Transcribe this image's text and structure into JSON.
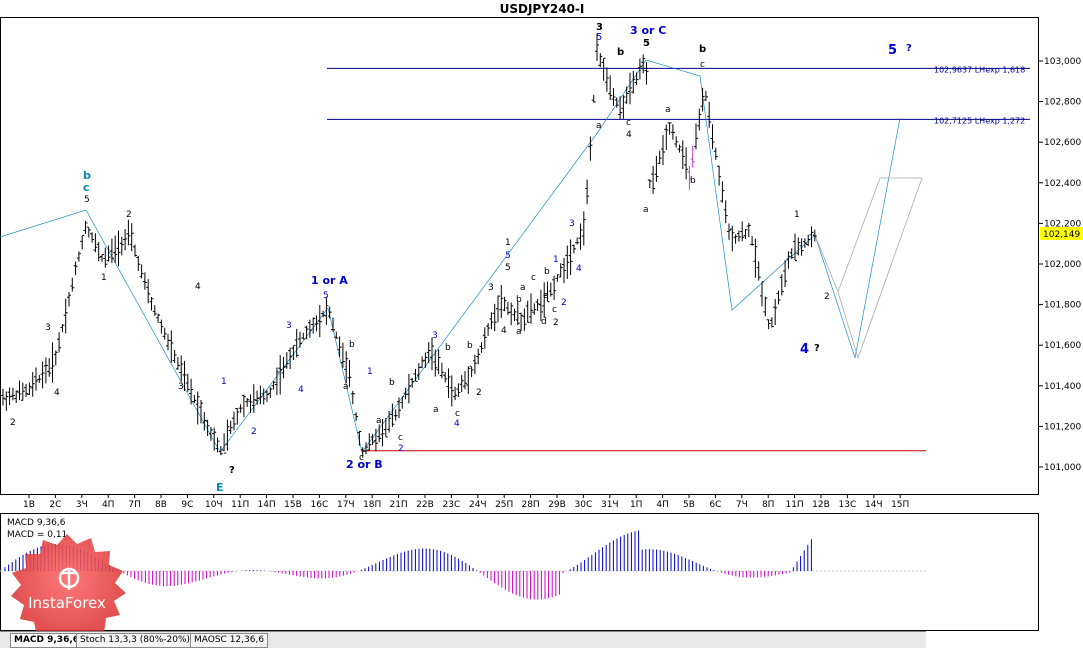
{
  "window": {
    "title": "USDJPY240-I"
  },
  "chart_data": {
    "type": "candlestick",
    "symbol": "USDJPY240-I",
    "price_axis": {
      "min": 100.93,
      "max": 103.1,
      "ticks": [
        "103,000",
        "102,800",
        "102,600",
        "102,400",
        "102,200",
        "102,000",
        "101,800",
        "101,600",
        "101,400",
        "101,200",
        "101,000"
      ],
      "current_price": "102,149"
    },
    "time_axis_labels": [
      "1В",
      "2С",
      "3Ч",
      "4П",
      "7П",
      "8В",
      "9С",
      "10Ч",
      "11П",
      "14П",
      "15В",
      "16С",
      "17Ч",
      "18П",
      "21П",
      "22В",
      "23С",
      "24Ч",
      "25П",
      "28П",
      "29В",
      "30С",
      "31Ч",
      "1П",
      "4П",
      "5В",
      "6С",
      "7Ч",
      "8П",
      "11П",
      "12В",
      "13С",
      "14Ч",
      "15П"
    ],
    "levels": [
      {
        "label": "102,9637 LHexp 1,618",
        "price": 102.9637,
        "color": "#00008b"
      },
      {
        "label": "102,7125 LHexp 1,272",
        "price": 102.7125,
        "color": "#00008b"
      },
      {
        "label": "",
        "price": 101.08,
        "color": "#cc0000"
      }
    ],
    "wave_labels": [
      {
        "text": "3",
        "style": "black"
      },
      {
        "text": "5",
        "style": "blue-small"
      },
      {
        "text": "3 or C",
        "style": "blue"
      },
      {
        "text": "b",
        "style": "black"
      },
      {
        "text": "5",
        "style": "black"
      },
      {
        "text": "b",
        "style": "black"
      },
      {
        "text": "c",
        "style": "small"
      },
      {
        "text": "5",
        "style": "blue"
      },
      {
        "text": "?",
        "style": "black"
      },
      {
        "text": "b",
        "style": "teal"
      },
      {
        "text": "c",
        "style": "teal"
      },
      {
        "text": "5",
        "style": "small"
      },
      {
        "text": "1 or A",
        "style": "blue"
      },
      {
        "text": "2 or B",
        "style": "blue"
      },
      {
        "text": "4",
        "style": "blue"
      },
      {
        "text": "?",
        "style": "black"
      },
      {
        "text": "E",
        "style": "teal"
      },
      {
        "text": "?",
        "style": "black"
      }
    ],
    "indicators": {
      "macd_title": "MACD 9,36,6",
      "macd_value": "MACD = 0,11",
      "tabs": [
        "MACD 9,36,6",
        "Stoch 13,3,3 (80%-20%)",
        "MAOSC 12,36,6"
      ]
    },
    "watermark": "InstaForex"
  }
}
